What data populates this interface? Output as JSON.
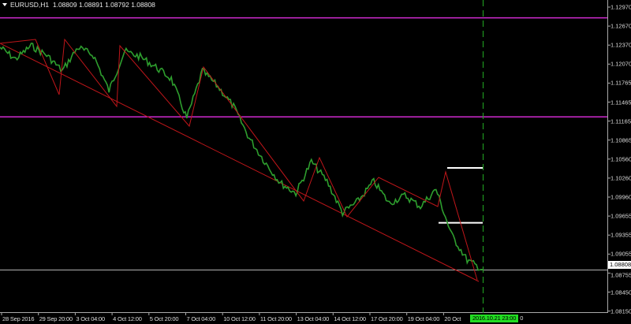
{
  "header": {
    "symbol": "EURUSD,H1",
    "open": "1.08809",
    "high": "1.08891",
    "low": "1.08792",
    "close": "1.08808"
  },
  "colors": {
    "background": "#000000",
    "price_line": "#2e9e2e",
    "trendline": "#c0161a",
    "level_lines": "#d02ad0",
    "current_price_line": "#b0b0b0",
    "vertical_marker": "#22aa22",
    "box_lines": "#ffffff"
  },
  "price_axis": {
    "labels": [
      "1.12970",
      "1.12670",
      "1.12370",
      "1.12070",
      "1.11765",
      "1.11465",
      "1.11165",
      "1.10865",
      "1.10560",
      "1.10260",
      "1.09960",
      "1.09655",
      "1.09355",
      "1.09055",
      "1.08755",
      "1.08450",
      "1.08150"
    ],
    "current_price": "1.08808"
  },
  "time_axis": {
    "labels": [
      "28 Sep 2016",
      "29 Sep 20:00",
      "3 Oct 04:00",
      "4 Oct 12:00",
      "5 Oct 20:00",
      "7 Oct 04:00",
      "10 Oct 12:00",
      "11 Oct 20:00",
      "13 Oct 04:00",
      "14 Oct 12:00",
      "17 Oct 20:00",
      "19 Oct 04:00",
      "20 Oct"
    ],
    "cursor_time": "2016.10.21 23:00",
    "cursor_suffix": "0"
  },
  "levels": {
    "magenta": [
      1.128,
      1.1123
    ],
    "white_boxes": [
      1.1042,
      1.0955
    ]
  },
  "chart_data": {
    "type": "line",
    "symbol": "EURUSD",
    "timeframe": "H1",
    "ylim": [
      1.0815,
      1.1297
    ],
    "close_samples": [
      1.12332,
      1.12145,
      1.12358,
      1.12208,
      1.11958,
      1.12332,
      1.12208,
      1.11645,
      1.1227,
      1.12182,
      1.1202,
      1.11832,
      1.11208,
      1.11958,
      1.11708,
      1.11395,
      1.10895,
      1.1052,
      1.10182,
      1.1002,
      1.1052,
      1.10208,
      1.09708,
      1.09895,
      1.10208,
      1.09858,
      1.09982,
      1.09808,
      1.10082,
      1.09358,
      1.08958,
      1.08808
    ]
  }
}
